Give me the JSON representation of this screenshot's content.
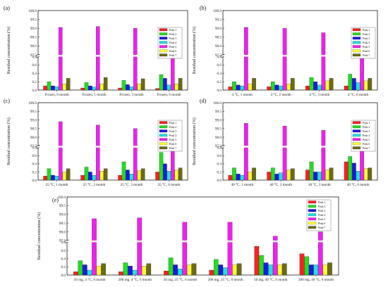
{
  "figure": {
    "ylabel": "Residual concentration (%)",
    "series_names": [
      "Peak 1",
      "Peak 2",
      "Peak 3",
      "Peak 4",
      "Peak 5",
      "Peak 6",
      "Peak 7"
    ],
    "colors": [
      "#ff2020",
      "#22dd22",
      "#1a1ae6",
      "#22e0e0",
      "#f020f0",
      "#ffff33",
      "#6b6b16"
    ]
  },
  "chart_data": [
    {
      "panel": "(a)",
      "type": "bar",
      "ylabel": "Residual concentration (%)",
      "ylim_lower": [
        0.0,
        0.8
      ],
      "ylim_upper": [
        97.5,
        100.0
      ],
      "ticks_lower": [
        "0.0",
        "0.2",
        "0.4",
        "0.6",
        "0.8"
      ],
      "ticks_upper": [
        "97.5",
        "98.0",
        "98.5",
        "99.0",
        "99.5",
        "100.0"
      ],
      "categories": [
        "Frozen, 0 month",
        "Frozen, 1 month",
        "Frozen, 3 month",
        "Frozen, 6 month"
      ],
      "series": [
        {
          "name": "Peak 1",
          "values": [
            0.1,
            0.05,
            0.05,
            0.04
          ]
        },
        {
          "name": "Peak 2",
          "values": [
            0.2,
            0.18,
            0.23,
            0.37
          ]
        },
        {
          "name": "Peak 3",
          "values": [
            0.1,
            0.1,
            0.13,
            0.28
          ]
        },
        {
          "name": "Peak 4",
          "values": [
            0.08,
            0.07,
            0.08,
            0.12
          ]
        },
        {
          "name": "Peak 5",
          "values": [
            99.05,
            99.1,
            99.0,
            98.8
          ]
        },
        {
          "name": "Peak 6",
          "values": [
            0.15,
            0.15,
            0.15,
            0.15
          ]
        },
        {
          "name": "Peak 7",
          "values": [
            0.28,
            0.3,
            0.27,
            0.28
          ]
        }
      ]
    },
    {
      "panel": "(b)",
      "type": "bar",
      "ylabel": "Residual concentration (%)",
      "ylim_lower": [
        0.0,
        0.8
      ],
      "ylim_upper": [
        97.5,
        100.0
      ],
      "ticks_lower": [
        "0.0",
        "0.2",
        "0.4",
        "0.6",
        "0.8"
      ],
      "ticks_upper": [
        "97.5",
        "98.0",
        "98.5",
        "99.0",
        "99.5",
        "100.0"
      ],
      "categories": [
        "4 °C, 1 month",
        "4 °C, 2 month",
        "4 °C, 3 month",
        "4 °C, 6 month"
      ],
      "series": [
        {
          "name": "Peak 1",
          "values": [
            0.08,
            0.08,
            0.1,
            0.1
          ]
        },
        {
          "name": "Peak 2",
          "values": [
            0.2,
            0.2,
            0.3,
            0.38
          ]
        },
        {
          "name": "Peak 3",
          "values": [
            0.12,
            0.12,
            0.2,
            0.28
          ]
        },
        {
          "name": "Peak 4",
          "values": [
            0.1,
            0.1,
            0.12,
            0.18
          ]
        },
        {
          "name": "Peak 5",
          "values": [
            99.05,
            99.0,
            98.75,
            98.65
          ]
        },
        {
          "name": "Peak 6",
          "values": [
            0.15,
            0.15,
            0.22,
            0.22
          ]
        },
        {
          "name": "Peak 7",
          "values": [
            0.28,
            0.28,
            0.28,
            0.28
          ]
        }
      ]
    },
    {
      "panel": "(c)",
      "type": "bar",
      "ylabel": "Residual concentration (%)",
      "ylim_lower": [
        0.0,
        0.8
      ],
      "ylim_upper": [
        97.5,
        100.0
      ],
      "ticks_lower": [
        "0.0",
        "0.2",
        "0.4",
        "0.6",
        "0.8"
      ],
      "ticks_upper": [
        "97.5",
        "98.0",
        "98.5",
        "99.0",
        "99.5",
        "100.0"
      ],
      "categories": [
        "25 °C, 1 month",
        "25 °C, 2 month",
        "25 °C, 3 month",
        "25 °C, 6 month"
      ],
      "series": [
        {
          "name": "Peak 1",
          "values": [
            0.1,
            0.12,
            0.12,
            0.2
          ]
        },
        {
          "name": "Peak 2",
          "values": [
            0.28,
            0.32,
            0.45,
            0.68
          ]
        },
        {
          "name": "Peak 3",
          "values": [
            0.12,
            0.2,
            0.25,
            0.4
          ]
        },
        {
          "name": "Peak 4",
          "values": [
            0.1,
            0.12,
            0.15,
            0.22
          ]
        },
        {
          "name": "Peak 5",
          "values": [
            98.9,
            98.7,
            98.5,
            98.0
          ]
        },
        {
          "name": "Peak 6",
          "values": [
            0.2,
            0.22,
            0.23,
            0.25
          ]
        },
        {
          "name": "Peak 7",
          "values": [
            0.28,
            0.28,
            0.28,
            0.3
          ]
        }
      ]
    },
    {
      "panel": "(d)",
      "type": "bar",
      "ylabel": "Residual concentration (%)",
      "ylim_lower": [
        0.0,
        0.8
      ],
      "ylim_upper": [
        97.5,
        100.0
      ],
      "ticks_lower": [
        "0.0",
        "0.2",
        "0.4",
        "0.6",
        "0.8"
      ],
      "ticks_upper": [
        "97.5",
        "98.0",
        "98.5",
        "99.0",
        "99.5",
        "100.0"
      ],
      "categories": [
        "40 °C, 1 month",
        "40 °C, 2 month",
        "40 °C, 3 month",
        "40 °C, 6 month"
      ],
      "series": [
        {
          "name": "Peak 1",
          "values": [
            0.12,
            0.2,
            0.25,
            0.45
          ]
        },
        {
          "name": "Peak 2",
          "values": [
            0.3,
            0.3,
            0.45,
            0.58
          ]
        },
        {
          "name": "Peak 3",
          "values": [
            0.15,
            0.15,
            0.2,
            0.42
          ]
        },
        {
          "name": "Peak 4",
          "values": [
            0.12,
            0.18,
            0.2,
            0.22
          ]
        },
        {
          "name": "Peak 5",
          "values": [
            98.8,
            98.65,
            98.4,
            97.85
          ]
        },
        {
          "name": "Peak 6",
          "values": [
            0.2,
            0.25,
            0.25,
            0.28
          ]
        },
        {
          "name": "Peak 7",
          "values": [
            0.3,
            0.28,
            0.3,
            0.3
          ]
        }
      ]
    },
    {
      "panel": "(e)",
      "type": "bar",
      "ylabel": "Residual concentration (%)",
      "ylim_lower": [
        0.0,
        0.8
      ],
      "ylim_upper": [
        97.5,
        100.0
      ],
      "ticks_lower": [
        "0.0",
        "0.2",
        "0.4",
        "0.6",
        "0.8"
      ],
      "ticks_upper": [
        "97.5",
        "98.0",
        "98.5",
        "99.0",
        "99.5",
        "100.0"
      ],
      "categories": [
        "50 mg, 4 °C, 6 month",
        "200 mg, 4 °C, 6 month",
        "50 mg, 25 °C, 6 month",
        "200 mg, 25 °C, 6 month",
        "50 mg, 40 °C, 6 month",
        "200 mg, 40 °C, 6 month"
      ],
      "series": [
        {
          "name": "Peak 1",
          "values": [
            0.08,
            0.08,
            0.1,
            0.12,
            0.7,
            0.52
          ]
        },
        {
          "name": "Peak 2",
          "values": [
            0.35,
            0.3,
            0.42,
            0.38,
            0.48,
            0.45
          ]
        },
        {
          "name": "Peak 3",
          "values": [
            0.25,
            0.22,
            0.25,
            0.25,
            0.3,
            0.25
          ]
        },
        {
          "name": "Peak 4",
          "values": [
            0.12,
            0.12,
            0.15,
            0.18,
            0.25,
            0.25
          ]
        },
        {
          "name": "Peak 5",
          "values": [
            98.75,
            98.8,
            98.55,
            98.55,
            97.75,
            98.0
          ]
        },
        {
          "name": "Peak 6",
          "values": [
            0.22,
            0.22,
            0.25,
            0.25,
            0.25,
            0.25
          ]
        },
        {
          "name": "Peak 7",
          "values": [
            0.28,
            0.28,
            0.28,
            0.28,
            0.28,
            0.3
          ]
        }
      ]
    }
  ]
}
